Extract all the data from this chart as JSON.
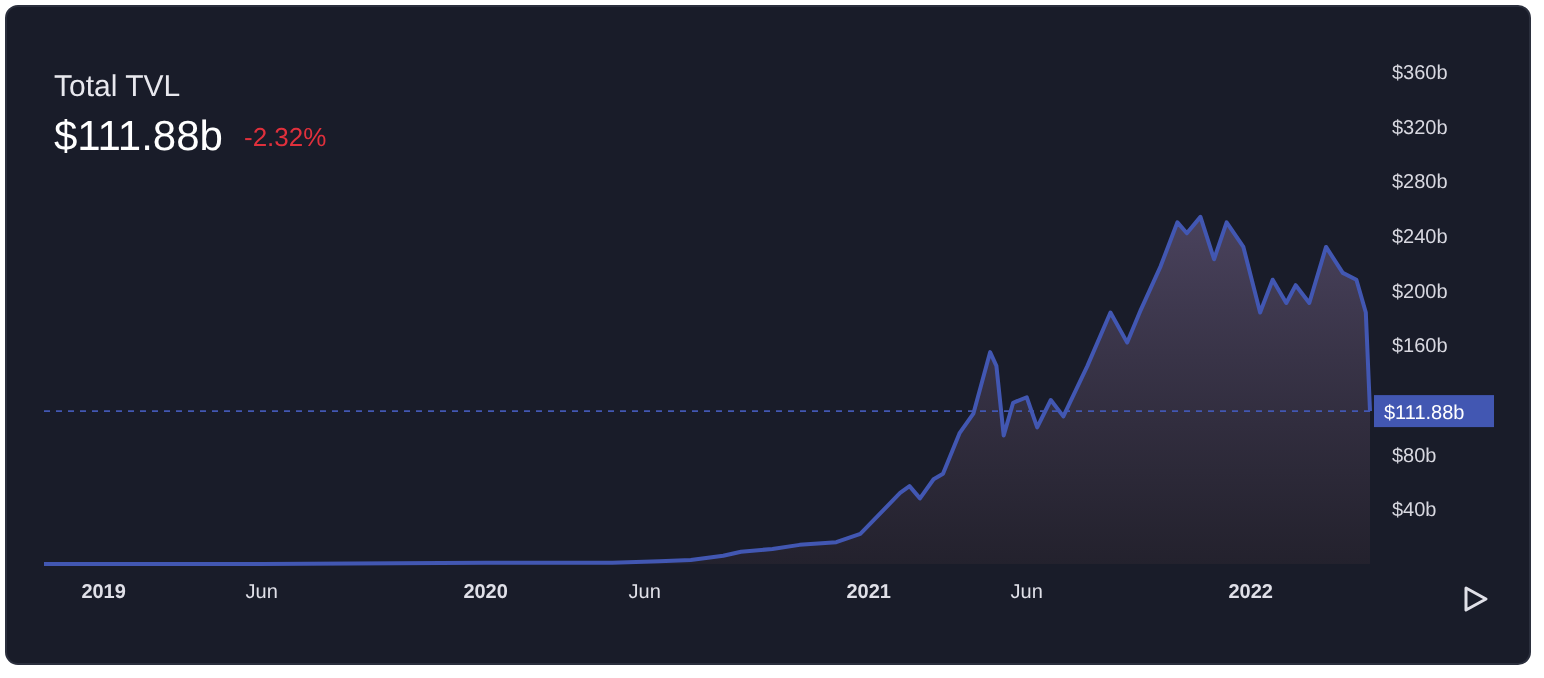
{
  "chart_data": {
    "type": "area",
    "title": "Total TVL",
    "subtitle": "$111.88b",
    "annotations": [
      "-2.32%"
    ],
    "series": [
      {
        "color": "#4257b2",
        "x": [
          "2018-11-05",
          "2019-06-01",
          "2020-01-01",
          "2020-05-01",
          "2020-06-15",
          "2020-07-15",
          "2020-08-15",
          "2020-09-01",
          "2020-10-01",
          "2020-10-27",
          "2020-12-01",
          "2020-12-24",
          "2021-01-31",
          "2021-02-09",
          "2021-02-19",
          "2021-03-04",
          "2021-03-13",
          "2021-03-29",
          "2021-04-11",
          "2021-04-27",
          "2021-05-03",
          "2021-05-10",
          "2021-05-19",
          "2021-06-01",
          "2021-06-11",
          "2021-06-24",
          "2021-07-06",
          "2021-07-29",
          "2021-08-20",
          "2021-09-05",
          "2021-09-18",
          "2021-10-07",
          "2021-10-23",
          "2021-11-01",
          "2021-11-14",
          "2021-11-27",
          "2021-12-09",
          "2021-12-25",
          "2022-01-10",
          "2022-01-22",
          "2022-02-04",
          "2022-02-13",
          "2022-02-26",
          "2022-03-14",
          "2022-03-30",
          "2022-04-12",
          "2022-04-21",
          "2022-04-25"
        ],
        "values": [
          0,
          0,
          1,
          1,
          2,
          3,
          6,
          9,
          11,
          14,
          16,
          22,
          52,
          57,
          48,
          62,
          66,
          96,
          110,
          155,
          145,
          94,
          118,
          122,
          100,
          120,
          108,
          145,
          184,
          162,
          186,
          218,
          250,
          242,
          254,
          223,
          250,
          232,
          184,
          208,
          191,
          204,
          191,
          232,
          213,
          208,
          184,
          111.88
        ]
      }
    ],
    "xlim": [
      "2018-11-05",
      "2022-04-25"
    ],
    "xticks": [
      {
        "value": "2019-01-01",
        "label": "2019"
      },
      {
        "value": "2019-06-01",
        "label": "Jun"
      },
      {
        "value": "2020-01-01",
        "label": "2020"
      },
      {
        "value": "2020-06-01",
        "label": "Jun"
      },
      {
        "value": "2021-01-01",
        "label": "2021"
      },
      {
        "value": "2021-06-01",
        "label": "Jun"
      },
      {
        "value": "2022-01-01",
        "label": "2022"
      }
    ],
    "ylim": [
      0,
      360
    ],
    "yticks": [
      {
        "value": 40,
        "label": "$40b"
      },
      {
        "value": 80,
        "label": "$80b"
      },
      {
        "value": 160,
        "label": "$160b"
      },
      {
        "value": 200,
        "label": "$200b"
      },
      {
        "value": 240,
        "label": "$240b"
      },
      {
        "value": 280,
        "label": "$280b"
      },
      {
        "value": 320,
        "label": "$320b"
      },
      {
        "value": 360,
        "label": "$360b"
      }
    ],
    "ref_lines": [
      {
        "axis": "y",
        "value": 111.88,
        "label": "$111.88b",
        "color": "#4257b2",
        "line_style": "dashed"
      }
    ],
    "grid": false
  }
}
